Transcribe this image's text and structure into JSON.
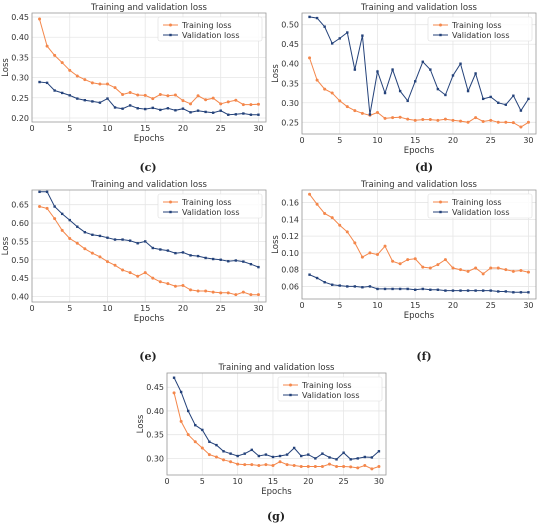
{
  "colors": {
    "training": "#f4874b",
    "validation": "#24427a",
    "grid": "#e6e6e6",
    "axis": "#999999",
    "text": "#333333"
  },
  "chart_data": [
    {
      "type": "line",
      "caption": "(c)",
      "title": "Training and validation loss",
      "xlabel": "Epochs",
      "ylabel": "Loss",
      "xlim": [
        0,
        31
      ],
      "ylim": [
        0.19,
        0.46
      ],
      "xticks": [
        0,
        5,
        10,
        15,
        20,
        25,
        30
      ],
      "yticks": [
        0.2,
        0.25,
        0.3,
        0.35,
        0.4,
        0.45
      ],
      "ytick_labels": [
        "0.20",
        "0.25",
        "0.30",
        "0.35",
        "0.40",
        "0.45"
      ],
      "grid": true,
      "legend_position": "top-right",
      "x": [
        1,
        2,
        3,
        4,
        5,
        6,
        7,
        8,
        9,
        10,
        11,
        12,
        13,
        14,
        15,
        16,
        17,
        18,
        19,
        20,
        21,
        22,
        23,
        24,
        25,
        26,
        27,
        28,
        29,
        30
      ],
      "series": [
        {
          "name": "Training loss",
          "values": [
            0.445,
            0.378,
            0.355,
            0.337,
            0.318,
            0.304,
            0.295,
            0.287,
            0.284,
            0.284,
            0.275,
            0.258,
            0.263,
            0.257,
            0.256,
            0.248,
            0.258,
            0.255,
            0.257,
            0.243,
            0.235,
            0.255,
            0.245,
            0.249,
            0.235,
            0.24,
            0.244,
            0.233,
            0.233,
            0.234
          ]
        },
        {
          "name": "Validation loss",
          "values": [
            0.289,
            0.287,
            0.268,
            0.262,
            0.256,
            0.248,
            0.244,
            0.241,
            0.238,
            0.248,
            0.226,
            0.223,
            0.231,
            0.224,
            0.222,
            0.225,
            0.22,
            0.224,
            0.219,
            0.223,
            0.214,
            0.218,
            0.215,
            0.213,
            0.218,
            0.208,
            0.209,
            0.211,
            0.208,
            0.208
          ]
        }
      ]
    },
    {
      "type": "line",
      "caption": "(d)",
      "title": "Training and validation loss",
      "xlabel": "Epochs",
      "ylabel": "Loss",
      "xlim": [
        0,
        31
      ],
      "ylim": [
        0.22,
        0.53
      ],
      "xticks": [
        0,
        5,
        10,
        15,
        20,
        25,
        30
      ],
      "yticks": [
        0.25,
        0.3,
        0.35,
        0.4,
        0.45,
        0.5
      ],
      "ytick_labels": [
        "0.25",
        "0.30",
        "0.35",
        "0.40",
        "0.45",
        "0.50"
      ],
      "grid": true,
      "legend_position": "top-right",
      "x": [
        1,
        2,
        3,
        4,
        5,
        6,
        7,
        8,
        9,
        10,
        11,
        12,
        13,
        14,
        15,
        16,
        17,
        18,
        19,
        20,
        21,
        22,
        23,
        24,
        25,
        26,
        27,
        28,
        29,
        30
      ],
      "series": [
        {
          "name": "Training loss",
          "values": [
            0.415,
            0.358,
            0.335,
            0.325,
            0.305,
            0.29,
            0.28,
            0.273,
            0.268,
            0.275,
            0.26,
            0.262,
            0.263,
            0.258,
            0.255,
            0.257,
            0.257,
            0.255,
            0.258,
            0.255,
            0.253,
            0.25,
            0.262,
            0.252,
            0.255,
            0.25,
            0.25,
            0.249,
            0.238,
            0.25
          ]
        },
        {
          "name": "Validation loss",
          "values": [
            0.52,
            0.517,
            0.495,
            0.452,
            0.465,
            0.48,
            0.385,
            0.472,
            0.27,
            0.38,
            0.325,
            0.385,
            0.33,
            0.305,
            0.355,
            0.405,
            0.385,
            0.335,
            0.32,
            0.37,
            0.4,
            0.33,
            0.375,
            0.31,
            0.315,
            0.3,
            0.295,
            0.318,
            0.28,
            0.31
          ]
        }
      ]
    },
    {
      "type": "line",
      "caption": "(e)",
      "title": "Training and validation loss",
      "xlabel": "Epochs",
      "ylabel": "Loss",
      "xlim": [
        0,
        31
      ],
      "ylim": [
        0.385,
        0.69
      ],
      "xticks": [
        0,
        5,
        10,
        15,
        20,
        25,
        30
      ],
      "yticks": [
        0.4,
        0.45,
        0.5,
        0.55,
        0.6,
        0.65
      ],
      "ytick_labels": [
        "0.40",
        "0.45",
        "0.50",
        "0.55",
        "0.60",
        "0.65"
      ],
      "grid": true,
      "legend_position": "top-right",
      "x": [
        1,
        2,
        3,
        4,
        5,
        6,
        7,
        8,
        9,
        10,
        11,
        12,
        13,
        14,
        15,
        16,
        17,
        18,
        19,
        20,
        21,
        22,
        23,
        24,
        25,
        26,
        27,
        28,
        29,
        30
      ],
      "series": [
        {
          "name": "Training loss",
          "values": [
            0.645,
            0.64,
            0.612,
            0.58,
            0.558,
            0.545,
            0.53,
            0.518,
            0.508,
            0.495,
            0.485,
            0.472,
            0.465,
            0.455,
            0.465,
            0.45,
            0.44,
            0.435,
            0.428,
            0.43,
            0.418,
            0.415,
            0.415,
            0.412,
            0.41,
            0.41,
            0.405,
            0.412,
            0.405,
            0.405
          ]
        },
        {
          "name": "Validation loss",
          "values": [
            0.685,
            0.685,
            0.645,
            0.625,
            0.608,
            0.59,
            0.575,
            0.568,
            0.565,
            0.56,
            0.555,
            0.555,
            0.552,
            0.545,
            0.55,
            0.532,
            0.528,
            0.525,
            0.518,
            0.52,
            0.512,
            0.51,
            0.505,
            0.502,
            0.5,
            0.496,
            0.498,
            0.495,
            0.488,
            0.48
          ]
        }
      ]
    },
    {
      "type": "line",
      "caption": "(f)",
      "title": "Training and validation loss",
      "xlabel": "Epochs",
      "ylabel": "Loss",
      "xlim": [
        0,
        31
      ],
      "ylim": [
        0.045,
        0.175
      ],
      "xticks": [
        0,
        5,
        10,
        15,
        20,
        25,
        30
      ],
      "yticks": [
        0.06,
        0.08,
        0.1,
        0.12,
        0.14,
        0.16
      ],
      "ytick_labels": [
        "0.06",
        "0.08",
        "0.10",
        "0.12",
        "0.14",
        "0.16"
      ],
      "grid": true,
      "legend_position": "top-right",
      "x": [
        1,
        2,
        3,
        4,
        5,
        6,
        7,
        8,
        9,
        10,
        11,
        12,
        13,
        14,
        15,
        16,
        17,
        18,
        19,
        20,
        21,
        22,
        23,
        24,
        25,
        26,
        27,
        28,
        29,
        30
      ],
      "series": [
        {
          "name": "Training loss",
          "values": [
            0.17,
            0.158,
            0.147,
            0.142,
            0.133,
            0.125,
            0.112,
            0.095,
            0.1,
            0.098,
            0.108,
            0.09,
            0.087,
            0.092,
            0.093,
            0.083,
            0.082,
            0.086,
            0.092,
            0.082,
            0.08,
            0.078,
            0.082,
            0.075,
            0.082,
            0.082,
            0.08,
            0.078,
            0.079,
            0.077
          ]
        },
        {
          "name": "Validation loss",
          "values": [
            0.074,
            0.07,
            0.065,
            0.062,
            0.061,
            0.06,
            0.06,
            0.059,
            0.06,
            0.057,
            0.057,
            0.057,
            0.057,
            0.057,
            0.056,
            0.057,
            0.056,
            0.056,
            0.055,
            0.055,
            0.055,
            0.055,
            0.055,
            0.055,
            0.055,
            0.054,
            0.054,
            0.053,
            0.053,
            0.053
          ]
        }
      ]
    },
    {
      "type": "line",
      "caption": "(g)",
      "title": "Training and validation loss",
      "xlabel": "Epochs",
      "ylabel": "Loss",
      "xlim": [
        0,
        31
      ],
      "ylim": [
        0.265,
        0.48
      ],
      "xticks": [
        0,
        5,
        10,
        15,
        20,
        25,
        30
      ],
      "yticks": [
        0.3,
        0.35,
        0.4,
        0.45
      ],
      "ytick_labels": [
        "0.30",
        "0.35",
        "0.40",
        "0.45"
      ],
      "grid": true,
      "legend_position": "top-right",
      "x": [
        1,
        2,
        3,
        4,
        5,
        6,
        7,
        8,
        9,
        10,
        11,
        12,
        13,
        14,
        15,
        16,
        17,
        18,
        19,
        20,
        21,
        22,
        23,
        24,
        25,
        26,
        27,
        28,
        29,
        30
      ],
      "series": [
        {
          "name": "Training loss",
          "values": [
            0.438,
            0.378,
            0.35,
            0.335,
            0.322,
            0.308,
            0.303,
            0.297,
            0.293,
            0.288,
            0.287,
            0.287,
            0.285,
            0.287,
            0.285,
            0.293,
            0.287,
            0.285,
            0.283,
            0.283,
            0.283,
            0.283,
            0.288,
            0.283,
            0.283,
            0.282,
            0.28,
            0.285,
            0.278,
            0.283
          ]
        },
        {
          "name": "Validation loss",
          "values": [
            0.47,
            0.44,
            0.4,
            0.37,
            0.36,
            0.335,
            0.328,
            0.315,
            0.31,
            0.305,
            0.31,
            0.318,
            0.305,
            0.308,
            0.303,
            0.305,
            0.308,
            0.322,
            0.305,
            0.308,
            0.3,
            0.31,
            0.302,
            0.298,
            0.312,
            0.298,
            0.3,
            0.303,
            0.302,
            0.315
          ]
        }
      ]
    }
  ]
}
